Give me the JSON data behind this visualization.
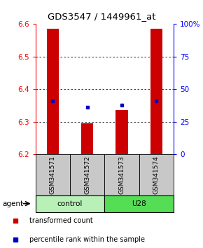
{
  "title": "GDS3547 / 1449961_at",
  "samples": [
    "GSM341571",
    "GSM341572",
    "GSM341573",
    "GSM341574"
  ],
  "group_labels": [
    "control",
    "U28"
  ],
  "bar_bottom": 6.2,
  "bar_values": [
    6.585,
    6.295,
    6.335,
    6.585
  ],
  "blue_dot_values": [
    6.365,
    6.345,
    6.35,
    6.365
  ],
  "ylim_left": [
    6.2,
    6.6
  ],
  "ylim_right": [
    0,
    100
  ],
  "right_ticks": [
    0,
    25,
    50,
    75,
    100
  ],
  "right_tick_labels": [
    "0",
    "25",
    "50",
    "75",
    "100%"
  ],
  "left_ticks": [
    6.2,
    6.3,
    6.4,
    6.5,
    6.6
  ],
  "bar_color": "#CC0000",
  "dot_color": "#0000CC",
  "bar_width": 0.35,
  "legend_red": "transformed count",
  "legend_blue": "percentile rank within the sample",
  "agent_label": "agent",
  "sample_box_color": "#C8C8C8",
  "group_control_color": "#B8F0B8",
  "group_u28_color": "#55DD55"
}
